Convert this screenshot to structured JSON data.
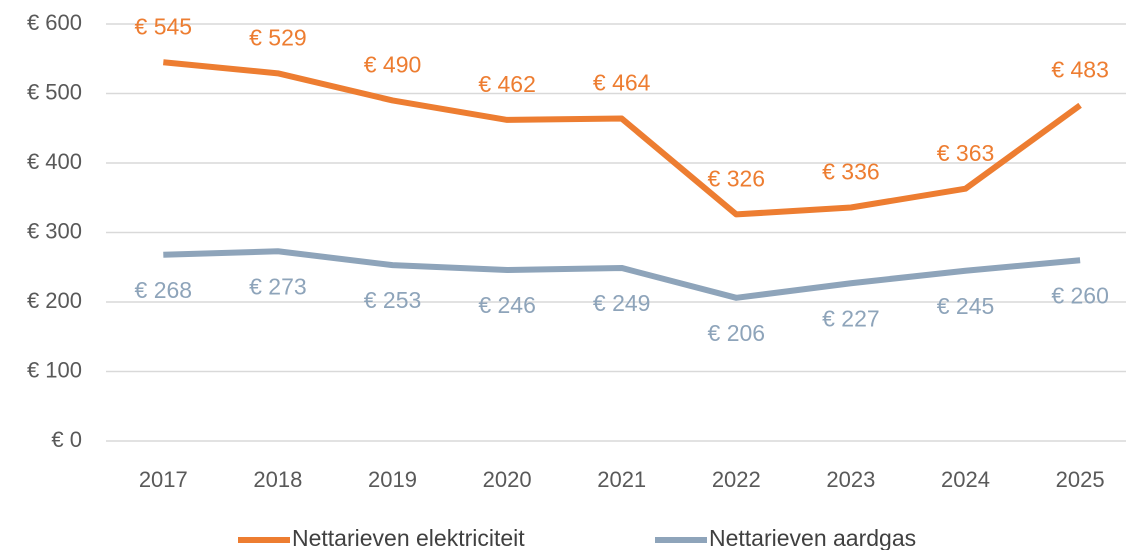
{
  "chart_data": {
    "type": "line",
    "categories": [
      "2017",
      "2018",
      "2019",
      "2020",
      "2021",
      "2022",
      "2023",
      "2024",
      "2025"
    ],
    "series": [
      {
        "name": "Nettarieven elektriciteit",
        "color": "#ED7D31",
        "values": [
          545,
          529,
          490,
          462,
          464,
          326,
          336,
          363,
          483
        ],
        "value_labels": [
          "€ 545",
          "€ 529",
          "€ 490",
          "€ 462",
          "€ 464",
          "€ 326",
          "€ 336",
          "€ 363",
          "€ 483"
        ]
      },
      {
        "name": "Nettarieven aardgas",
        "color": "#8EA4BA",
        "values": [
          268,
          273,
          253,
          246,
          249,
          206,
          227,
          245,
          260
        ],
        "value_labels": [
          "€ 268",
          "€ 273",
          "€ 253",
          "€ 246",
          "€ 249",
          "€ 206",
          "€ 227",
          "€ 245",
          "€ 260"
        ]
      }
    ],
    "ylim": [
      0,
      600
    ],
    "yticks": [
      {
        "value": 0,
        "label": "€ 0"
      },
      {
        "value": 100,
        "label": "€ 100"
      },
      {
        "value": 200,
        "label": "€ 200"
      },
      {
        "value": 300,
        "label": "€ 300"
      },
      {
        "value": 400,
        "label": "€ 400"
      },
      {
        "value": 500,
        "label": "€ 500"
      },
      {
        "value": 600,
        "label": "€ 600"
      }
    ],
    "grid": true,
    "legend": "bottom"
  }
}
